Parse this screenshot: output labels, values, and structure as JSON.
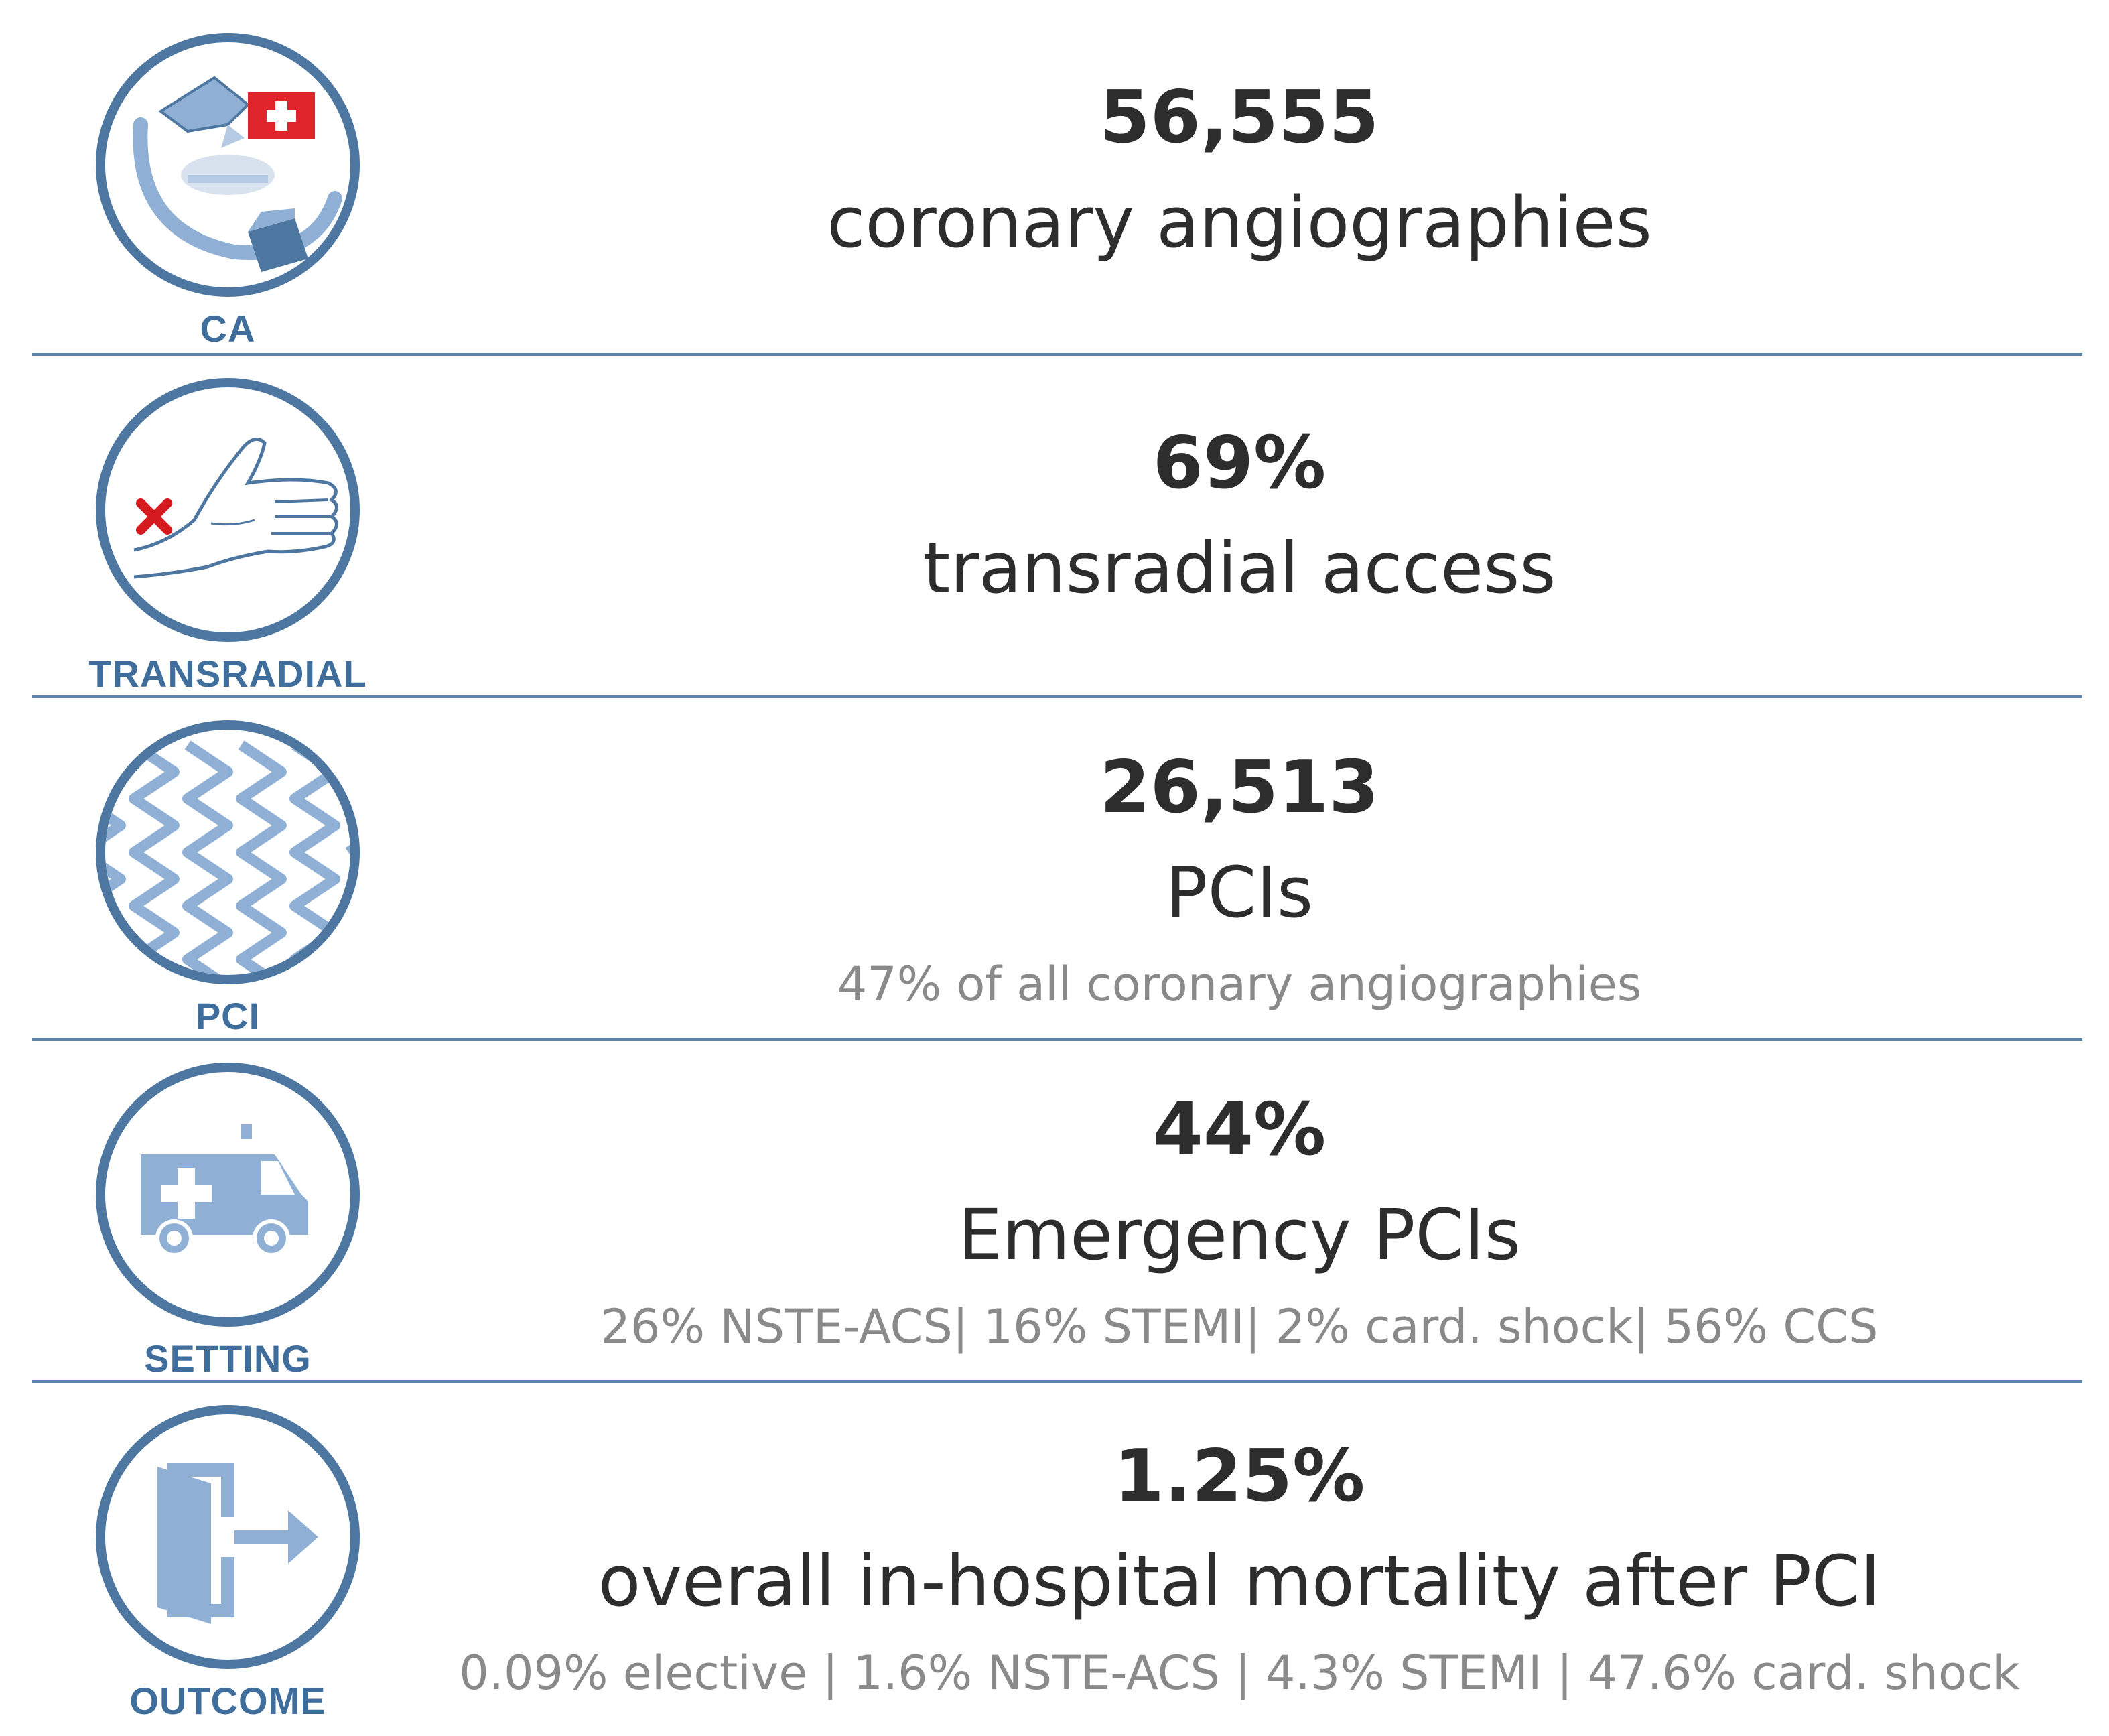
{
  "colors": {
    "icon_ring": "#4d77a1",
    "icon_fill": "#8fb0d4",
    "label": "#3f6e9c",
    "divider": "#5b84ad",
    "headline": "#2d2d2d",
    "subtext": "#8a8a8a",
    "flag_red": "#e0242b"
  },
  "rows": [
    {
      "label": "CA",
      "icon": "catheterization-lab-icon",
      "value": "56,555",
      "description": "coronary angiographies",
      "detail": ""
    },
    {
      "label": "TRANSRADIAL",
      "icon": "wrist-access-icon",
      "value": "69%",
      "description": "transradial access",
      "detail": ""
    },
    {
      "label": "PCI",
      "icon": "stent-icon",
      "value": "26,513",
      "description": "PCIs",
      "detail": "47% of all coronary angiographies"
    },
    {
      "label": "SETTING",
      "icon": "ambulance-icon",
      "value": "44%",
      "description": "Emergency PCIs",
      "detail": "26% NSTE-ACS| 16% STEMI| 2% card. shock| 56% CCS"
    },
    {
      "label": "OUTCOME",
      "icon": "exit-door-icon",
      "value": "1.25%",
      "description": "overall in-hospital mortality after PCI",
      "detail": "0.09% elective | 1.6% NSTE-ACS  | 4.3% STEMI | 47.6% card. shock"
    }
  ]
}
